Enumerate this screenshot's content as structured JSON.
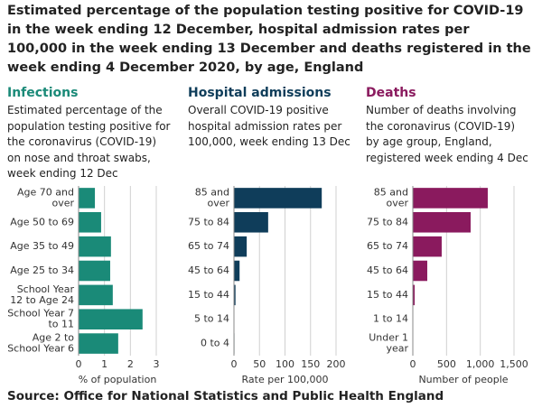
{
  "title": "Estimated percentage of the population testing positive for COVID-19 in the week ending 12 December, hospital admission rates per 100,000 in the week ending 13 December and deaths registered in the week ending 4 December 2020, by age, England",
  "source": "Source: Office for National Statistics and Public Health England",
  "chart_data": [
    {
      "type": "bar",
      "orientation": "horizontal",
      "title": "Infections",
      "subtitle": "Estimated percentage of the population testing positive for the coronavirus (COVID-19) on nose and throat swabs, week ending 12 Dec",
      "categories": [
        "Age 70 and over",
        "Age 50 to 69",
        "Age 35 to 49",
        "Age 25 to 34",
        "School Year 12 to Age 24",
        "School Year 7 to 11",
        "Age 2 to School Year 6"
      ],
      "values": [
        0.63,
        0.87,
        1.25,
        1.22,
        1.32,
        2.47,
        1.53
      ],
      "color": "#1a8a78",
      "xlim": [
        0,
        3
      ],
      "xticks": [
        0,
        1,
        2,
        3
      ],
      "xlabel": "% of population",
      "grid": true
    },
    {
      "type": "bar",
      "orientation": "horizontal",
      "title": "Hospital admissions",
      "subtitle": "Overall COVID-19 positive hospital admission rates per 100,000, week ending 13 Dec",
      "categories": [
        "85 and over",
        "75 to 84",
        "65 to 74",
        "45 to 64",
        "15 to 44",
        "5 to 14",
        "0 to 4"
      ],
      "values": [
        172,
        67,
        25,
        11,
        3,
        0.5,
        1
      ],
      "color": "#0f3d5a",
      "xlim": [
        0,
        200
      ],
      "xticks": [
        0,
        50,
        100,
        150,
        200
      ],
      "xlabel": "Rate per 100,000",
      "grid": true
    },
    {
      "type": "bar",
      "orientation": "horizontal",
      "title": "Deaths",
      "subtitle": "Number of deaths involving the coronavirus (COVID-19) by age group, England, registered week ending 4 Dec",
      "categories": [
        "85 and over",
        "75 to 84",
        "65 to 74",
        "45 to 64",
        "15 to 44",
        "1 to 14",
        "Under 1 year"
      ],
      "values": [
        1111,
        857,
        428,
        214,
        27,
        0,
        0
      ],
      "color": "#8a1a5e",
      "xlim": [
        0,
        1500
      ],
      "xticks": [
        0,
        500,
        {
          "value": 1000,
          "label": "1,000"
        },
        {
          "value": 1500,
          "label": "1,500"
        }
      ],
      "xlabel": "Number of people",
      "grid": true
    }
  ]
}
